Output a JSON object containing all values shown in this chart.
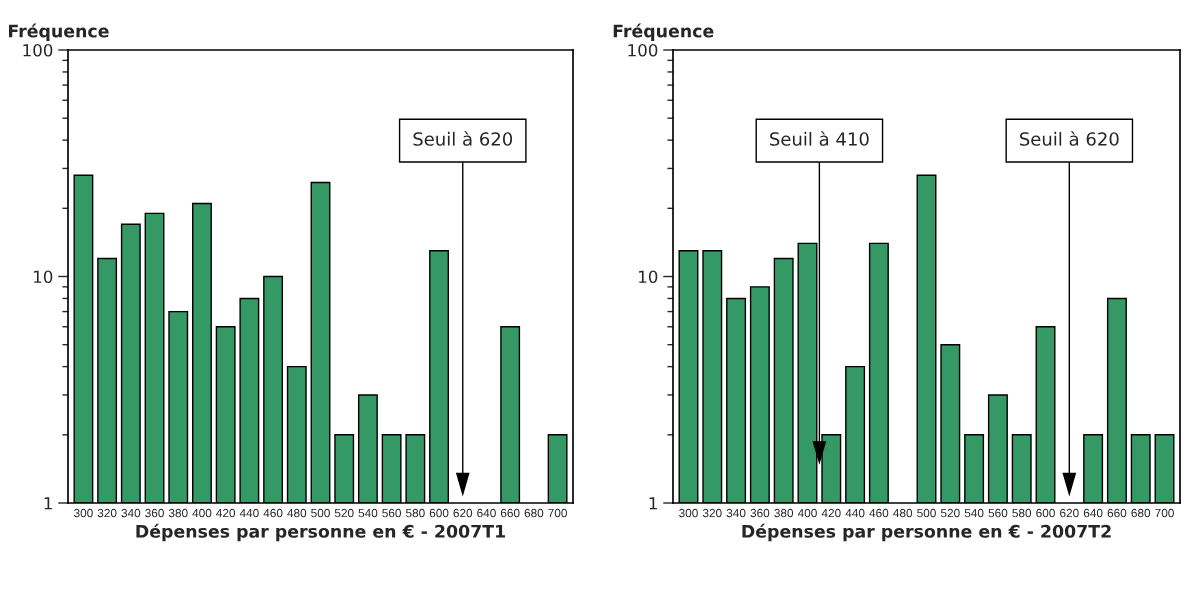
{
  "chart_data": [
    {
      "type": "bar",
      "ylabel": "Fréquence",
      "xlabel": "Dépenses par personne en € - 2007T1",
      "log": "y",
      "grid": false,
      "color": "#359966",
      "x": [
        300,
        320,
        340,
        360,
        380,
        400,
        420,
        440,
        460,
        480,
        500,
        520,
        540,
        560,
        580,
        600,
        620,
        640,
        660,
        680,
        700
      ],
      "values": [
        28,
        12,
        17,
        19,
        7,
        21,
        6,
        8,
        10,
        4,
        26,
        2,
        3,
        2,
        2,
        13,
        null,
        null,
        6,
        null,
        2
      ],
      "xlim": [
        287,
        713
      ],
      "xticks": [
        300,
        320,
        340,
        360,
        380,
        400,
        420,
        440,
        460,
        480,
        500,
        520,
        540,
        560,
        580,
        600,
        620,
        640,
        660,
        680,
        700
      ],
      "ylim": [
        1,
        100
      ],
      "yticks": [
        1,
        10,
        100
      ],
      "ref_lines": [
        {
          "axis": "x",
          "value": 620,
          "label": "Seuil à 620"
        }
      ]
    },
    {
      "type": "bar",
      "ylabel": "Fréquence",
      "xlabel": "Dépenses par personne en € - 2007T2",
      "log": "y",
      "grid": false,
      "color": "#359966",
      "x": [
        300,
        320,
        340,
        360,
        380,
        400,
        420,
        440,
        460,
        480,
        500,
        520,
        540,
        560,
        580,
        600,
        620,
        640,
        660,
        680,
        700
      ],
      "values": [
        13,
        13,
        8,
        9,
        12,
        14,
        2,
        4,
        14,
        null,
        28,
        5,
        2,
        3,
        2,
        6,
        null,
        2,
        8,
        2,
        2
      ],
      "xlim": [
        287,
        713
      ],
      "xticks": [
        300,
        320,
        340,
        360,
        380,
        400,
        420,
        440,
        460,
        480,
        500,
        520,
        540,
        560,
        580,
        600,
        620,
        640,
        660,
        680,
        700
      ],
      "ylim": [
        1,
        100
      ],
      "yticks": [
        1,
        10,
        100
      ],
      "ref_lines": [
        {
          "axis": "x",
          "value": 410,
          "label": "Seuil à 410"
        },
        {
          "axis": "x",
          "value": 620,
          "label": "Seuil à 620"
        }
      ]
    }
  ]
}
